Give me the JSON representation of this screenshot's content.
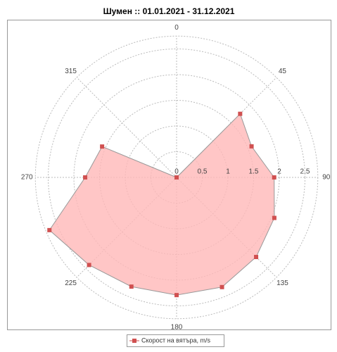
{
  "chart_data": {
    "type": "polar",
    "title": "Шумен :: 01.01.2021 - 31.12.2021",
    "x": [
      0,
      22.5,
      45,
      67.5,
      90,
      112.5,
      135,
      157.5,
      180,
      202.5,
      225,
      247.5,
      270,
      292.5,
      315,
      337.5
    ],
    "series": [
      {
        "name": "Скорост на вятъра, m/s",
        "color": "#d05050",
        "fill": "#ffb8b8",
        "values": [
          0,
          0,
          1.75,
          1.58,
          1.9,
          2.06,
          2.19,
          2.31,
          2.29,
          2.3,
          2.41,
          2.68,
          1.78,
          1.57,
          0,
          0
        ]
      }
    ],
    "xlim": [
      0,
      360
    ],
    "xticks": [
      0,
      45,
      90,
      135,
      180,
      225,
      270,
      315
    ],
    "ylim": [
      0,
      2.75
    ],
    "yticks": [
      0,
      0.5,
      1,
      1.5,
      2,
      2.5
    ],
    "grid": true,
    "legend": "bottom"
  }
}
